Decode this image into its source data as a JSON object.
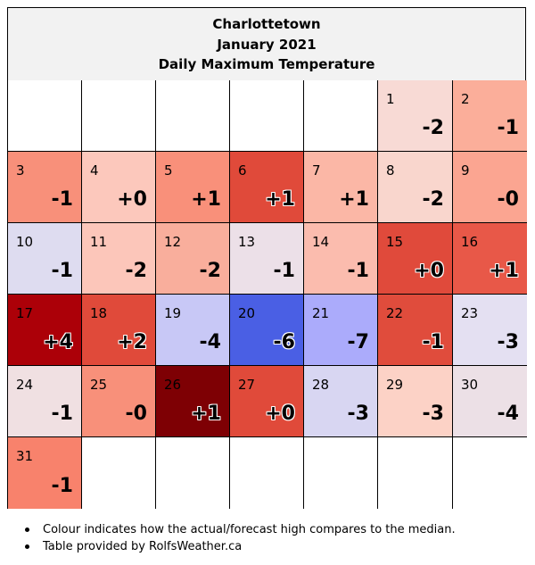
{
  "header": {
    "line1": "Charlottetown",
    "line2": "January 2021",
    "line3": "Daily Maximum Temperature"
  },
  "chart_data": {
    "type": "table",
    "title": "Charlottetown January 2021 Daily Maximum Temperature",
    "columns": 7,
    "leading_blank_cells": 5,
    "days": [
      {
        "day": "1",
        "anomaly": "-2",
        "color": "#f8dad5"
      },
      {
        "day": "2",
        "anomaly": "-1",
        "color": "#fbae9a"
      },
      {
        "day": "3",
        "anomaly": "-1",
        "color": "#f8907a"
      },
      {
        "day": "4",
        "anomaly": "+0",
        "color": "#fcc8bc"
      },
      {
        "day": "5",
        "anomaly": "+1",
        "color": "#f9907a"
      },
      {
        "day": "6",
        "anomaly": "+1",
        "color": "#e04a3a"
      },
      {
        "day": "7",
        "anomaly": "+1",
        "color": "#fbb7a6"
      },
      {
        "day": "8",
        "anomaly": "-2",
        "color": "#f9d6cd"
      },
      {
        "day": "9",
        "anomaly": "-0",
        "color": "#fba591"
      },
      {
        "day": "10",
        "anomaly": "-1",
        "color": "#dedcf0"
      },
      {
        "day": "11",
        "anomaly": "-2",
        "color": "#fcc6ba"
      },
      {
        "day": "12",
        "anomaly": "-2",
        "color": "#f9ae9c"
      },
      {
        "day": "13",
        "anomaly": "-1",
        "color": "#ece0e8"
      },
      {
        "day": "14",
        "anomaly": "-1",
        "color": "#fbbcae"
      },
      {
        "day": "15",
        "anomaly": "+0",
        "color": "#e04a3b"
      },
      {
        "day": "16",
        "anomaly": "+1",
        "color": "#e85848"
      },
      {
        "day": "17",
        "anomaly": "+4",
        "color": "#ac0008"
      },
      {
        "day": "18",
        "anomaly": "+2",
        "color": "#e04a3a"
      },
      {
        "day": "19",
        "anomaly": "-4",
        "color": "#c8c8f6"
      },
      {
        "day": "20",
        "anomaly": "-6",
        "color": "#4a5fe4"
      },
      {
        "day": "21",
        "anomaly": "-7",
        "color": "#ababfb"
      },
      {
        "day": "22",
        "anomaly": "-1",
        "color": "#e04c3c"
      },
      {
        "day": "23",
        "anomaly": "-3",
        "color": "#e4e0f2"
      },
      {
        "day": "24",
        "anomaly": "-1",
        "color": "#f0e0e2"
      },
      {
        "day": "25",
        "anomaly": "-0",
        "color": "#f8907a"
      },
      {
        "day": "26",
        "anomaly": "+1",
        "color": "#7e0004"
      },
      {
        "day": "27",
        "anomaly": "+0",
        "color": "#e04a3a"
      },
      {
        "day": "28",
        "anomaly": "-3",
        "color": "#d8d6f2"
      },
      {
        "day": "29",
        "anomaly": "-3",
        "color": "#fcd2c6"
      },
      {
        "day": "30",
        "anomaly": "-4",
        "color": "#ece0e6"
      },
      {
        "day": "31",
        "anomaly": "-1",
        "color": "#f8826c"
      }
    ]
  },
  "notes": [
    "Colour indicates how the actual/forecast high compares to the median.",
    "Table provided by RolfsWeather.ca"
  ]
}
